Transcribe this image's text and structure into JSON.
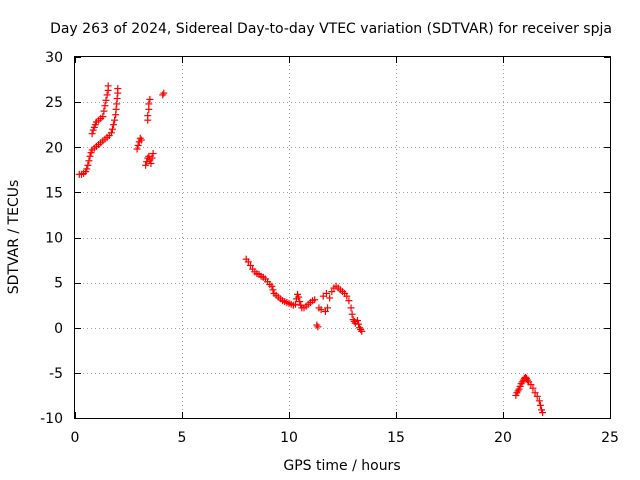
{
  "chart_data": {
    "type": "scatter",
    "title": "Day 263 of 2024, Sidereal Day-to-day VTEC variation (SDTVAR) for receiver spja",
    "xlabel": "GPS time / hours",
    "ylabel": "SDTVAR / TECUs",
    "xlim": [
      0,
      25
    ],
    "ylim": [
      -10,
      30
    ],
    "xticks": [
      "0",
      "5",
      "10",
      "15",
      "20",
      "25"
    ],
    "yticks": [
      "-10",
      "-5",
      "0",
      "5",
      "10",
      "15",
      "20",
      "25",
      "30"
    ],
    "grid": true,
    "marker": "plus",
    "color": "#ff0000",
    "series": [
      {
        "name": "SDTVAR",
        "points": [
          [
            0.2,
            17.0
          ],
          [
            0.3,
            17.0
          ],
          [
            0.4,
            17.1
          ],
          [
            0.5,
            17.3
          ],
          [
            0.55,
            17.6
          ],
          [
            0.6,
            18.0
          ],
          [
            0.65,
            18.5
          ],
          [
            0.7,
            19.0
          ],
          [
            0.75,
            19.4
          ],
          [
            0.8,
            19.7
          ],
          [
            0.9,
            19.9
          ],
          [
            1.0,
            20.1
          ],
          [
            1.1,
            20.3
          ],
          [
            1.2,
            20.5
          ],
          [
            1.3,
            20.7
          ],
          [
            1.4,
            20.9
          ],
          [
            1.5,
            21.1
          ],
          [
            1.6,
            21.3
          ],
          [
            1.7,
            21.6
          ],
          [
            1.75,
            22.0
          ],
          [
            1.8,
            22.5
          ],
          [
            1.85,
            23.0
          ],
          [
            1.9,
            23.6
          ],
          [
            1.92,
            24.2
          ],
          [
            1.95,
            24.8
          ],
          [
            1.97,
            25.4
          ],
          [
            2.0,
            26.0
          ],
          [
            2.0,
            26.5
          ],
          [
            0.8,
            21.5
          ],
          [
            0.85,
            21.9
          ],
          [
            0.9,
            22.2
          ],
          [
            0.95,
            22.5
          ],
          [
            1.0,
            22.8
          ],
          [
            1.1,
            23.0
          ],
          [
            1.2,
            23.2
          ],
          [
            1.3,
            23.4
          ],
          [
            1.35,
            24.0
          ],
          [
            1.4,
            24.6
          ],
          [
            1.45,
            25.2
          ],
          [
            1.5,
            25.8
          ],
          [
            1.55,
            26.3
          ],
          [
            1.55,
            26.8
          ],
          [
            2.9,
            19.8
          ],
          [
            2.95,
            20.2
          ],
          [
            3.0,
            20.6
          ],
          [
            3.05,
            21.0
          ],
          [
            3.1,
            20.8
          ],
          [
            3.3,
            18.0
          ],
          [
            3.35,
            18.4
          ],
          [
            3.4,
            18.8
          ],
          [
            3.45,
            19.0
          ],
          [
            3.5,
            18.6
          ],
          [
            3.55,
            18.2
          ],
          [
            3.6,
            18.8
          ],
          [
            3.65,
            19.3
          ],
          [
            3.4,
            23.0
          ],
          [
            3.4,
            23.5
          ],
          [
            3.45,
            24.2
          ],
          [
            3.45,
            24.8
          ],
          [
            3.5,
            25.3
          ],
          [
            4.1,
            25.8
          ],
          [
            4.15,
            26.0
          ],
          [
            8.0,
            7.6
          ],
          [
            8.1,
            7.3
          ],
          [
            8.2,
            6.9
          ],
          [
            8.3,
            6.5
          ],
          [
            8.4,
            6.2
          ],
          [
            8.5,
            6.0
          ],
          [
            8.6,
            5.9
          ],
          [
            8.7,
            5.7
          ],
          [
            8.8,
            5.6
          ],
          [
            8.9,
            5.4
          ],
          [
            9.0,
            5.1
          ],
          [
            9.1,
            4.8
          ],
          [
            9.2,
            4.6
          ],
          [
            9.25,
            4.2
          ],
          [
            9.3,
            3.8
          ],
          [
            9.4,
            3.6
          ],
          [
            9.5,
            3.4
          ],
          [
            9.6,
            3.2
          ],
          [
            9.7,
            3.0
          ],
          [
            9.8,
            2.9
          ],
          [
            9.9,
            2.8
          ],
          [
            10.0,
            2.7
          ],
          [
            10.1,
            2.6
          ],
          [
            10.2,
            2.5
          ],
          [
            10.3,
            2.6
          ],
          [
            10.35,
            3.2
          ],
          [
            10.4,
            3.7
          ],
          [
            10.45,
            3.4
          ],
          [
            10.5,
            2.9
          ],
          [
            10.55,
            2.5
          ],
          [
            10.6,
            2.2
          ],
          [
            10.7,
            2.2
          ],
          [
            10.8,
            2.4
          ],
          [
            10.9,
            2.6
          ],
          [
            11.0,
            2.8
          ],
          [
            11.1,
            3.0
          ],
          [
            11.2,
            3.1
          ],
          [
            11.3,
            0.3
          ],
          [
            11.35,
            0.1
          ],
          [
            11.4,
            2.2
          ],
          [
            11.5,
            2.0
          ],
          [
            11.6,
            3.5
          ],
          [
            11.7,
            1.8
          ],
          [
            11.75,
            3.8
          ],
          [
            11.8,
            2.2
          ],
          [
            11.9,
            3.3
          ],
          [
            12.0,
            4.0
          ],
          [
            12.1,
            4.4
          ],
          [
            12.2,
            4.6
          ],
          [
            12.3,
            4.4
          ],
          [
            12.4,
            4.2
          ],
          [
            12.5,
            4.0
          ],
          [
            12.6,
            3.8
          ],
          [
            12.7,
            3.5
          ],
          [
            12.8,
            3.0
          ],
          [
            12.9,
            2.2
          ],
          [
            12.95,
            1.5
          ],
          [
            13.0,
            0.9
          ],
          [
            13.05,
            0.7
          ],
          [
            13.1,
            0.5
          ],
          [
            13.2,
            0.8
          ],
          [
            13.25,
            0.4
          ],
          [
            13.3,
            0.0
          ],
          [
            13.35,
            -0.2
          ],
          [
            13.4,
            -0.4
          ],
          [
            20.6,
            -7.5
          ],
          [
            20.65,
            -7.2
          ],
          [
            20.7,
            -7.0
          ],
          [
            20.75,
            -6.8
          ],
          [
            20.8,
            -6.5
          ],
          [
            20.85,
            -6.2
          ],
          [
            20.9,
            -6.0
          ],
          [
            20.95,
            -5.8
          ],
          [
            21.0,
            -5.6
          ],
          [
            21.05,
            -5.5
          ],
          [
            21.1,
            -5.6
          ],
          [
            21.15,
            -5.8
          ],
          [
            21.2,
            -6.0
          ],
          [
            21.3,
            -6.3
          ],
          [
            21.4,
            -6.7
          ],
          [
            21.5,
            -7.2
          ],
          [
            21.6,
            -7.6
          ],
          [
            21.7,
            -8.1
          ],
          [
            21.75,
            -8.6
          ],
          [
            21.8,
            -9.1
          ],
          [
            21.85,
            -9.4
          ]
        ]
      }
    ]
  }
}
